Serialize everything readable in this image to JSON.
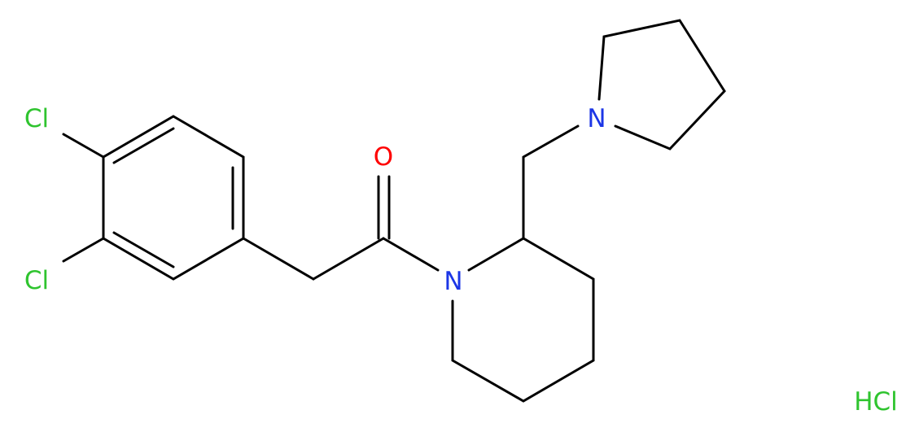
{
  "atoms": [
    {
      "label": "Cl"
    },
    {
      "label": "Cl"
    },
    {
      "label": "O"
    },
    {
      "label": "N"
    },
    {
      "label": "N"
    }
  ],
  "salt": {
    "label": "HCl"
  }
}
